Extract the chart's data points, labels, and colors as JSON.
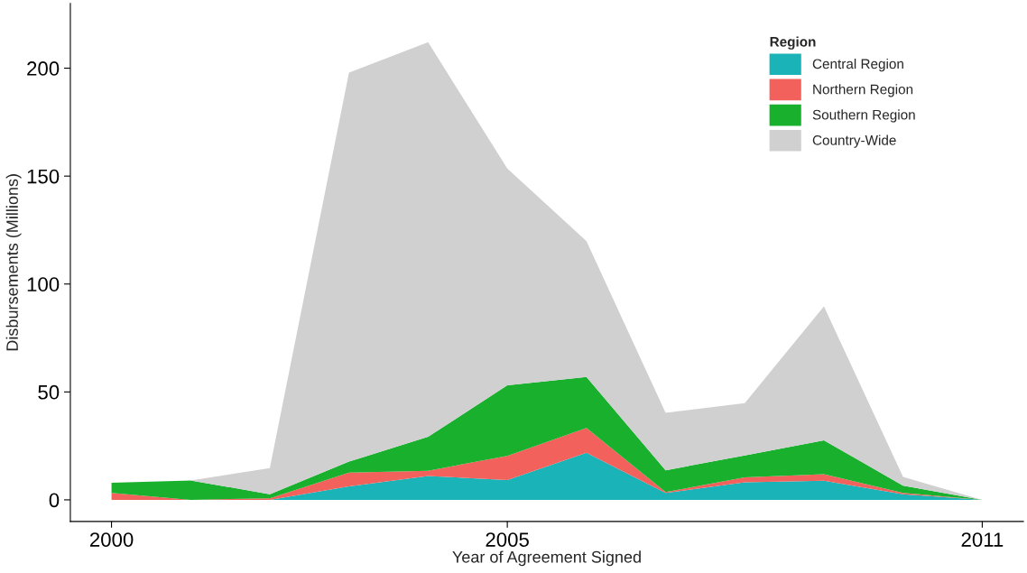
{
  "chart_data": {
    "type": "area",
    "stacked": true,
    "xlabel": "Year of Agreement Signed",
    "ylabel": "Disbursements (Millions)",
    "legend_title": "Region",
    "x": [
      2000,
      2001,
      2002,
      2003,
      2004,
      2005,
      2006,
      2007,
      2008,
      2009,
      2010,
      2011
    ],
    "series": [
      {
        "name": "Central Region",
        "color": "#19b3b8",
        "values": [
          0,
          0,
          0,
          6.2,
          11,
          9.2,
          21.8,
          3.2,
          8.1,
          8.9,
          2.6,
          0
        ]
      },
      {
        "name": "Northern Region",
        "color": "#f2615b",
        "values": [
          3.2,
          0,
          0.7,
          6.4,
          2.5,
          11.2,
          11.5,
          0.4,
          2.3,
          3,
          0.6,
          0
        ]
      },
      {
        "name": "Southern Region",
        "color": "#19b02e",
        "values": [
          4.7,
          9,
          1.9,
          5.1,
          15.7,
          32.7,
          23.6,
          10.1,
          10.2,
          15.7,
          3.4,
          0
        ]
      },
      {
        "name": "Country-Wide",
        "color": "#d0d0d0",
        "values": [
          0,
          0,
          12.1,
          180.2,
          182.8,
          100.4,
          63,
          26.6,
          24.2,
          62.1,
          4,
          0
        ]
      }
    ],
    "xlim": [
      1999.48,
      2011.52
    ],
    "xticks": [
      2000,
      2005,
      2011
    ],
    "ylim": [
      -10,
      230
    ],
    "yticks": [
      0,
      50,
      100,
      150,
      200
    ],
    "grid": false,
    "legend": "top right"
  }
}
